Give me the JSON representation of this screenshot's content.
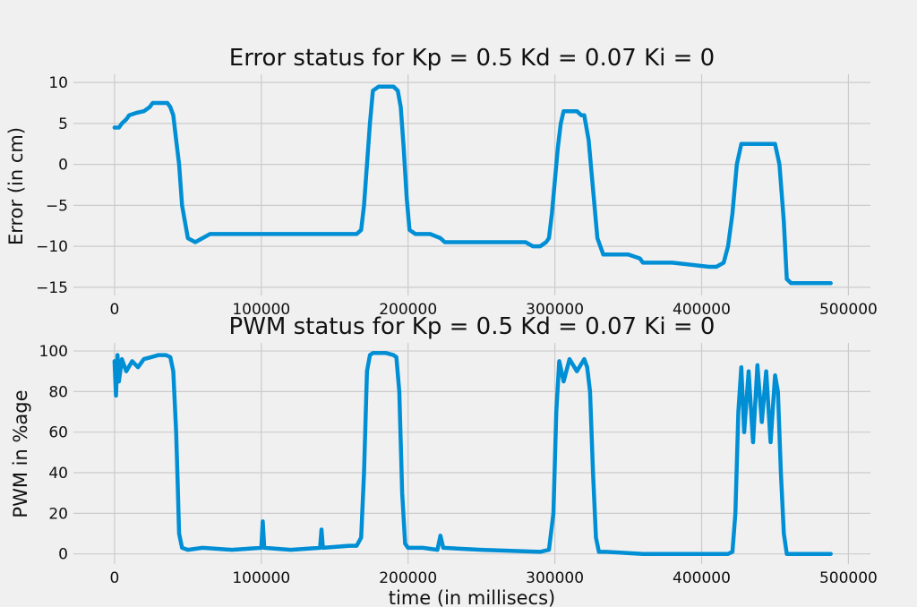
{
  "chart_data": [
    {
      "type": "line",
      "title": "Error status for Kp = 0.5 Kd = 0.07 Ki = 0",
      "xlabel": "",
      "ylabel": "Error (in cm)",
      "xlim": [
        -28000,
        515000
      ],
      "ylim": [
        -16,
        11
      ],
      "grid": true,
      "xticks": [
        0,
        100000,
        200000,
        300000,
        400000,
        500000
      ],
      "xtick_labels": [
        "0",
        "100000",
        "200000",
        "300000",
        "400000",
        "500000"
      ],
      "yticks": [
        10,
        5,
        0,
        -5,
        -10,
        -15
      ],
      "ytick_labels": [
        "10",
        "5",
        "0",
        "−5",
        "−10",
        "−15"
      ],
      "series": [
        {
          "color": "#008fd5",
          "x": [
            0,
            3000,
            5000,
            8000,
            10000,
            15000,
            20000,
            24000,
            26000,
            30000,
            36000,
            38000,
            40000,
            42000,
            44000,
            46000,
            50000,
            55000,
            60000,
            65000,
            100000,
            120000,
            140000,
            160000,
            165000,
            168000,
            170000,
            172000,
            174000,
            176000,
            180000,
            185000,
            190000,
            193000,
            195000,
            197000,
            199000,
            201000,
            205000,
            215000,
            222000,
            225000,
            250000,
            280000,
            285000,
            290000,
            294000,
            296000,
            298000,
            300000,
            302000,
            304000,
            306000,
            310000,
            315000,
            318000,
            320000,
            323000,
            326000,
            329000,
            333000,
            340000,
            350000,
            358000,
            360000,
            380000,
            405000,
            410000,
            415000,
            418000,
            421000,
            424000,
            427000,
            432000,
            438000,
            445000,
            450000,
            453000,
            456000,
            458000,
            461000,
            470000,
            488000
          ],
          "y": [
            4.5,
            4.5,
            5,
            5.5,
            6,
            6.3,
            6.5,
            7,
            7.5,
            7.5,
            7.5,
            7,
            6,
            3,
            0,
            -5,
            -9,
            -9.5,
            -9,
            -8.5,
            -8.5,
            -8.5,
            -8.5,
            -8.5,
            -8.5,
            -8,
            -5,
            0,
            5,
            9,
            9.5,
            9.5,
            9.5,
            9,
            7,
            2,
            -4,
            -8,
            -8.5,
            -8.5,
            -9,
            -9.5,
            -9.5,
            -9.5,
            -10,
            -10,
            -9.5,
            -9,
            -6,
            -2,
            2,
            5,
            6.5,
            6.5,
            6.5,
            6,
            6,
            3,
            -3,
            -9,
            -11,
            -11,
            -11,
            -11.5,
            -12,
            -12,
            -12.5,
            -12.5,
            -12,
            -10,
            -6,
            0,
            2.5,
            2.5,
            2.5,
            2.5,
            2.5,
            0,
            -7,
            -14,
            -14.5,
            -14.5,
            -14.5
          ]
        }
      ]
    },
    {
      "type": "line",
      "title": "PWM status for Kp = 0.5 Kd = 0.07 Ki = 0",
      "xlabel": "time (in millisecs)",
      "ylabel": "PWM in %age",
      "xlim": [
        -28000,
        515000
      ],
      "ylim": [
        -5,
        104
      ],
      "grid": true,
      "xticks": [
        0,
        100000,
        200000,
        300000,
        400000,
        500000
      ],
      "xtick_labels": [
        "0",
        "100000",
        "200000",
        "300000",
        "400000",
        "500000"
      ],
      "yticks": [
        100,
        80,
        60,
        40,
        20,
        0
      ],
      "ytick_labels": [
        "100",
        "80",
        "60",
        "40",
        "20",
        "0"
      ],
      "series": [
        {
          "color": "#008fd5",
          "x": [
            0,
            1000,
            2000,
            3000,
            5000,
            8000,
            12000,
            16000,
            20000,
            25000,
            30000,
            35000,
            38000,
            40000,
            42000,
            43000,
            44000,
            46000,
            50000,
            60000,
            80000,
            100000,
            101000,
            102000,
            120000,
            140000,
            141000,
            142000,
            160000,
            165000,
            168000,
            170000,
            172000,
            174000,
            176000,
            185000,
            190000,
            192000,
            194000,
            196000,
            198000,
            200000,
            210000,
            220000,
            222000,
            224000,
            250000,
            290000,
            296000,
            299000,
            301000,
            303000,
            306000,
            310000,
            315000,
            320000,
            322000,
            324000,
            326000,
            328000,
            330000,
            335000,
            360000,
            400000,
            418000,
            421000,
            423000,
            425000,
            427000,
            429000,
            432000,
            435000,
            438000,
            441000,
            444000,
            447000,
            450000,
            452000,
            454000,
            456000,
            458000,
            462000,
            488000
          ],
          "y": [
            95,
            78,
            98,
            85,
            96,
            90,
            95,
            92,
            96,
            97,
            98,
            98,
            97,
            90,
            60,
            35,
            10,
            3,
            2,
            3,
            2,
            3,
            16,
            3,
            2,
            3,
            12,
            3,
            4,
            4,
            8,
            40,
            90,
            98,
            99,
            99,
            98,
            97,
            80,
            30,
            5,
            3,
            3,
            2,
            9,
            3,
            2,
            1,
            2,
            20,
            70,
            95,
            85,
            96,
            90,
            96,
            92,
            80,
            40,
            8,
            1,
            1,
            0,
            0,
            0,
            1,
            20,
            70,
            92,
            60,
            90,
            55,
            93,
            65,
            90,
            55,
            88,
            80,
            40,
            10,
            0,
            0,
            0
          ]
        }
      ]
    }
  ]
}
